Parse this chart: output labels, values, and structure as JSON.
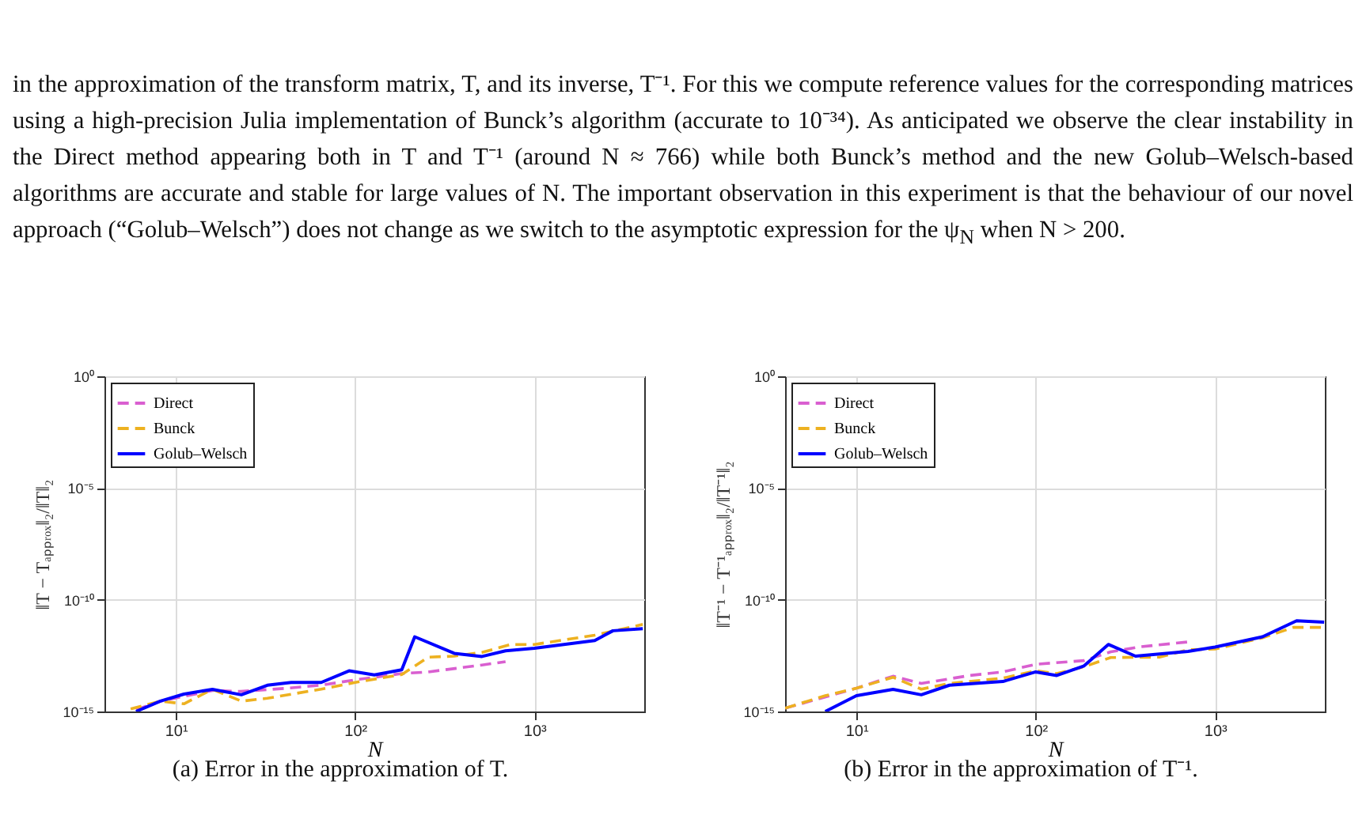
{
  "chart_data": [
    {
      "type": "line",
      "xlabel": "N",
      "ylabel": "‖T − Tₐₚₚᵣₒₓ‖₂/‖T‖₂",
      "log": "xy",
      "grid": true,
      "legend": "top left",
      "xlim": [
        4,
        4096
      ],
      "xticks": [
        {
          "value": 10,
          "label": "10¹"
        },
        {
          "value": 100,
          "label": "10²"
        },
        {
          "value": 1000,
          "label": "10³"
        }
      ],
      "ylim": [
        1e-15,
        1
      ],
      "yticks": [
        {
          "value": 1e-15,
          "label": "10⁻¹⁵"
        },
        {
          "value": 1e-10,
          "label": "10⁻¹⁰"
        },
        {
          "value": 1e-05,
          "label": "10⁻⁵"
        },
        {
          "value": 1,
          "label": "10⁰"
        }
      ],
      "annotations": [
        "in the approximation of the transform matrix, T, and its inverse, T⁻¹.  For this we compute reference values for the corresponding matrices using a high-precision Julia implementation of Bunck’s algorithm (accurate to 10⁻³⁴). As anticipated we observe the clear instability in the Direct method appearing both in T and T⁻¹ (around N ≈ 766) while both Bunck’s method and the new Golub–Welsch-based algorithms are accurate and stable for large values of N.  The important observation in this experiment is that the behaviour of our novel approach (“Golub–Welsch”) does not change as we switch to the asymptotic expression for the ψ$_{N}$ when N > 200.",
        "(a) Error in the approximation of T."
      ],
      "series": [
        {
          "name": "Direct",
          "color": "#d95fd0",
          "line_style": "dashed",
          "x": [
            6,
            8.2,
            16,
            23,
            42,
            64.7,
            100,
            182,
            256,
            510,
            690
          ],
          "values": [
            1.2e-15,
            2.9e-15,
            8.7e-15,
            7.9e-15,
            1.1e-14,
            1.5e-14,
            2.6e-14,
            5e-14,
            5.9e-14,
            1.2e-13,
            1.7e-13
          ]
        },
        {
          "name": "Bunck",
          "color": "#edb120",
          "line_style": "dashed",
          "x": [
            5.6,
            8.2,
            11.1,
            16,
            23.2,
            32.4,
            64.7,
            100,
            182,
            256,
            357,
            510,
            740,
            1000,
            2170,
            4020
          ],
          "values": [
            1.3e-15,
            2.9e-15,
            2.2e-15,
            9.8e-15,
            2.9e-15,
            3.9e-15,
            1e-14,
            2e-14,
            4.5e-14,
            2.7e-13,
            3e-13,
            4.4e-13,
            1e-12,
            1e-12,
            2.6e-12,
            7.9e-12
          ]
        },
        {
          "name": "Golub–Welsch",
          "color": "#0000ff",
          "line_style": "solid",
          "x": [
            6,
            8.2,
            11.1,
            16,
            23.2,
            32.4,
            44,
            64.7,
            92.5,
            128,
            182,
            215,
            357,
            510,
            690,
            1000,
            2170,
            2740,
            4020
          ],
          "values": [
            1e-15,
            2.9e-15,
            6e-15,
            9.8e-15,
            5.6e-15,
            1.5e-14,
            2e-14,
            2e-14,
            6.6e-14,
            4.3e-14,
            7.4e-14,
            2.2e-12,
            4e-13,
            2.9e-13,
            5.2e-13,
            6.8e-13,
            1.5e-12,
            4.1e-12,
            5.1e-12
          ]
        }
      ]
    },
    {
      "type": "line",
      "xlabel": "N",
      "ylabel": "‖T⁻¹ − T⁻¹ₐₚₚᵣₒₓ‖₂/‖T⁻¹‖₂",
      "log": "xy",
      "grid": true,
      "legend": "top left",
      "xlim": [
        4,
        4096
      ],
      "xticks": [
        {
          "value": 10,
          "label": "10¹"
        },
        {
          "value": 100,
          "label": "10²"
        },
        {
          "value": 1000,
          "label": "10³"
        }
      ],
      "ylim": [
        1e-15,
        1
      ],
      "yticks": [
        {
          "value": 1e-15,
          "label": "10⁻¹⁵"
        },
        {
          "value": 1e-10,
          "label": "10⁻¹⁰"
        },
        {
          "value": 1e-05,
          "label": "10⁻⁵"
        },
        {
          "value": 1,
          "label": "10⁰"
        }
      ],
      "annotations": [
        "(b) Error in the approximation of T⁻¹."
      ],
      "series": [
        {
          "name": "Direct",
          "color": "#d95fd0",
          "line_style": "dashed",
          "x": [
            4,
            6.7,
            10,
            16,
            23,
            42.9,
            65.6,
            100,
            186,
            262,
            386,
            707
          ],
          "values": [
            1.4e-15,
            null,
            1.1e-14,
            3.8e-14,
            1.8e-14,
            4.1e-14,
            5.9e-14,
            1.3e-13,
            1.9e-13,
            4.7e-13,
            7.9e-13,
            1.3e-12
          ]
        },
        {
          "name": "Bunck",
          "color": "#edb120",
          "line_style": "dashed",
          "x": [
            4,
            6.7,
            10,
            16,
            23,
            33,
            65.6,
            100,
            131,
            186,
            262,
            490,
            707,
            1000,
            1840,
            2740,
            4060
          ],
          "values": [
            1.4e-15,
            5.1e-15,
            1.1e-14,
            3.4e-14,
            1e-14,
            1.8e-14,
            3.1e-14,
            6.6e-14,
            5e-14,
            1e-13,
            2.6e-13,
            2.7e-13,
            5.8e-13,
            6.2e-13,
            2e-12,
            5.8e-12,
            5.8e-12
          ]
        },
        {
          "name": "Golub–Welsch",
          "color": "#0000ff",
          "line_style": "solid",
          "x": [
            6.7,
            10,
            16,
            23,
            33,
            65.6,
            100,
            131,
            186,
            254,
            360,
            707,
            1000,
            1840,
            2850,
            4060
          ],
          "values": [
            1e-15,
            5.1e-15,
            9.8e-15,
            5.6e-15,
            1.5e-14,
            2.2e-14,
            5.9e-14,
            4.1e-14,
            1.1e-13,
            1e-12,
            3e-13,
            4.9e-13,
            7.6e-13,
            2.2e-12,
            1.15e-11,
            1e-11
          ]
        }
      ]
    }
  ]
}
